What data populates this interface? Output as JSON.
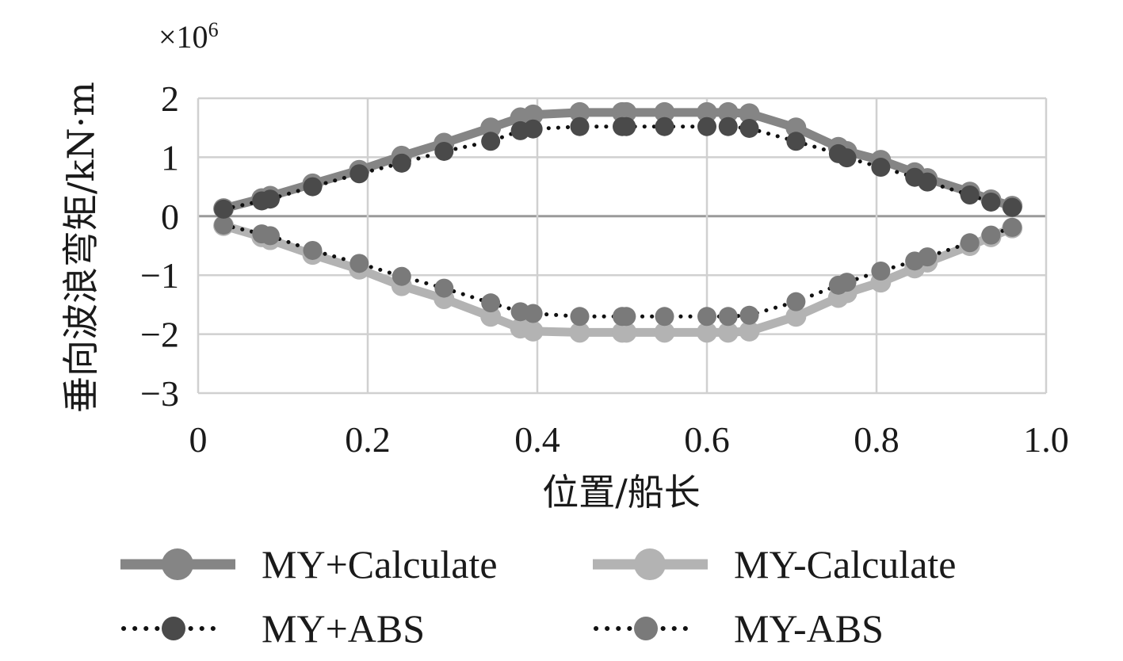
{
  "chart_data": {
    "type": "line",
    "ylabel": "垂向波浪弯矩/kN·m",
    "xlabel": "位置/船长",
    "y_multiplier": "×10",
    "y_multiplier_exp": "6",
    "xlim": [
      0,
      1.0
    ],
    "ylim": [
      -3,
      2
    ],
    "x_ticks": [
      0,
      0.2,
      0.4,
      0.6,
      0.8,
      1.0
    ],
    "x_tick_labels": [
      "0",
      "0.2",
      "0.4",
      "0.6",
      "0.8",
      "1.0"
    ],
    "y_ticks": [
      2,
      1,
      0,
      -1,
      -2,
      -3
    ],
    "y_tick_labels": [
      "2",
      "1",
      "0",
      "−1",
      "−2",
      "−3"
    ],
    "grid": true,
    "legend_position": "bottom",
    "series": [
      {
        "name": "MY+Calculate",
        "color": "#858585",
        "style": "solid-thick",
        "x": [
          0.03,
          0.075,
          0.085,
          0.135,
          0.19,
          0.24,
          0.29,
          0.345,
          0.38,
          0.395,
          0.45,
          0.5,
          0.505,
          0.55,
          0.6,
          0.625,
          0.65,
          0.705,
          0.755,
          0.765,
          0.805,
          0.845,
          0.86,
          0.91,
          0.935,
          0.96
        ],
        "values": [
          0.13,
          0.3,
          0.34,
          0.55,
          0.78,
          1.02,
          1.24,
          1.5,
          1.67,
          1.72,
          1.76,
          1.76,
          1.76,
          1.76,
          1.76,
          1.76,
          1.74,
          1.5,
          1.17,
          1.1,
          0.95,
          0.74,
          0.64,
          0.41,
          0.28,
          0.17
        ]
      },
      {
        "name": "MY-Calculate",
        "color": "#b3b3b3",
        "style": "solid-thick",
        "x": [
          0.03,
          0.075,
          0.085,
          0.135,
          0.19,
          0.24,
          0.29,
          0.345,
          0.38,
          0.395,
          0.45,
          0.5,
          0.505,
          0.55,
          0.6,
          0.625,
          0.65,
          0.705,
          0.755,
          0.765,
          0.805,
          0.845,
          0.86,
          0.91,
          0.935,
          0.96
        ],
        "values": [
          -0.16,
          -0.35,
          -0.4,
          -0.65,
          -0.9,
          -1.18,
          -1.4,
          -1.7,
          -1.9,
          -1.95,
          -1.97,
          -1.97,
          -1.97,
          -1.97,
          -1.97,
          -1.97,
          -1.95,
          -1.7,
          -1.38,
          -1.3,
          -1.12,
          -0.88,
          -0.78,
          -0.5,
          -0.35,
          -0.2
        ]
      },
      {
        "name": "MY+ABS",
        "color": "#4a4a4a",
        "style": "dotted",
        "x": [
          0.03,
          0.075,
          0.085,
          0.135,
          0.19,
          0.24,
          0.29,
          0.345,
          0.38,
          0.395,
          0.45,
          0.5,
          0.505,
          0.55,
          0.6,
          0.625,
          0.65,
          0.705,
          0.755,
          0.765,
          0.805,
          0.845,
          0.86,
          0.91,
          0.935,
          0.96
        ],
        "values": [
          0.12,
          0.26,
          0.29,
          0.5,
          0.72,
          0.9,
          1.1,
          1.27,
          1.45,
          1.48,
          1.52,
          1.52,
          1.52,
          1.52,
          1.52,
          1.52,
          1.49,
          1.27,
          1.06,
          0.99,
          0.83,
          0.66,
          0.58,
          0.36,
          0.24,
          0.15
        ]
      },
      {
        "name": "MY-ABS",
        "color": "#7a7a7a",
        "style": "dotted",
        "x": [
          0.03,
          0.075,
          0.085,
          0.135,
          0.19,
          0.24,
          0.29,
          0.345,
          0.38,
          0.395,
          0.45,
          0.5,
          0.505,
          0.55,
          0.6,
          0.625,
          0.65,
          0.705,
          0.755,
          0.765,
          0.805,
          0.845,
          0.86,
          0.91,
          0.935,
          0.96
        ],
        "values": [
          -0.15,
          -0.3,
          -0.33,
          -0.58,
          -0.8,
          -1.02,
          -1.22,
          -1.47,
          -1.62,
          -1.65,
          -1.7,
          -1.7,
          -1.7,
          -1.7,
          -1.7,
          -1.7,
          -1.68,
          -1.45,
          -1.17,
          -1.12,
          -0.93,
          -0.76,
          -0.69,
          -0.45,
          -0.32,
          -0.19
        ]
      }
    ]
  },
  "colors": {
    "grid": "#d0d0d0",
    "zero_line": "#9a9a9a",
    "text": "#1a1a1a"
  }
}
